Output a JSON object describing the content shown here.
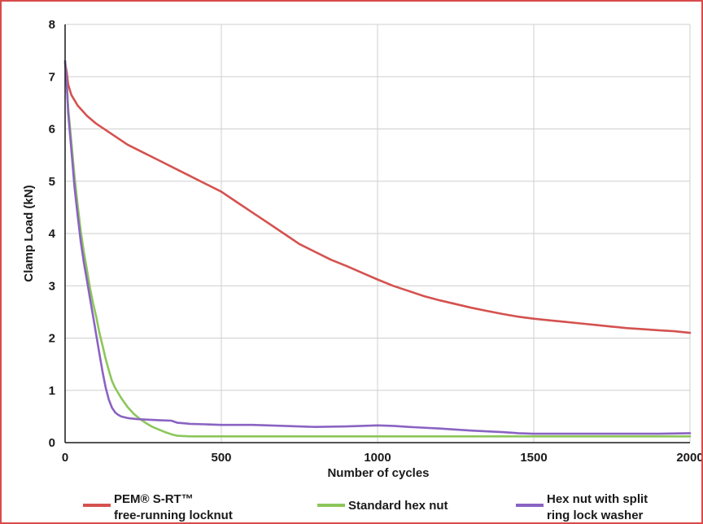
{
  "chart_data": {
    "type": "line",
    "title": "",
    "xlabel": "Number of cycles",
    "ylabel": "Clamp Load (kN)",
    "xlim": [
      0,
      2000
    ],
    "ylim": [
      0,
      8
    ],
    "xticks": [
      0,
      500,
      1000,
      1500,
      2000
    ],
    "xtick_labels": [
      "0",
      "500",
      "1000",
      "1500",
      "2000"
    ],
    "yticks": [
      0,
      1,
      2,
      3,
      4,
      5,
      6,
      7,
      8
    ],
    "ytick_labels": [
      "0",
      "1",
      "2",
      "3",
      "4",
      "5",
      "6",
      "7",
      "8"
    ],
    "grid": true,
    "legend_position": "bottom",
    "series": [
      {
        "name": "PEM® S-RT™ free-running locknut",
        "legend_lines": [
          "PEM® S-RT™",
          "free-running locknut"
        ],
        "color": "#d4524f",
        "x": [
          0,
          5,
          10,
          20,
          40,
          70,
          100,
          150,
          200,
          250,
          300,
          350,
          400,
          450,
          500,
          550,
          600,
          650,
          700,
          750,
          800,
          850,
          900,
          950,
          1000,
          1050,
          1100,
          1150,
          1200,
          1250,
          1300,
          1350,
          1400,
          1450,
          1500,
          1550,
          1600,
          1650,
          1700,
          1750,
          1800,
          1850,
          1900,
          1950,
          2000
        ],
        "values": [
          7.25,
          7.1,
          6.85,
          6.65,
          6.45,
          6.25,
          6.1,
          5.9,
          5.7,
          5.55,
          5.4,
          5.25,
          5.1,
          4.95,
          4.8,
          4.6,
          4.4,
          4.2,
          4.0,
          3.8,
          3.65,
          3.5,
          3.38,
          3.25,
          3.12,
          3.0,
          2.9,
          2.8,
          2.72,
          2.65,
          2.58,
          2.52,
          2.46,
          2.41,
          2.37,
          2.34,
          2.31,
          2.28,
          2.25,
          2.22,
          2.19,
          2.17,
          2.15,
          2.13,
          2.1
        ]
      },
      {
        "name": "Standard hex nut",
        "legend_lines": [
          "Standard hex nut"
        ],
        "color": "#8cc65a",
        "x": [
          0,
          5,
          10,
          20,
          30,
          40,
          50,
          60,
          70,
          80,
          90,
          100,
          110,
          120,
          130,
          140,
          150,
          160,
          170,
          180,
          200,
          220,
          240,
          260,
          280,
          300,
          320,
          340,
          360,
          400,
          500,
          600,
          800,
          1000,
          1200,
          1400,
          1600,
          1800,
          2000
        ],
        "values": [
          7.3,
          6.9,
          6.4,
          5.75,
          5.1,
          4.55,
          4.05,
          3.65,
          3.3,
          2.95,
          2.65,
          2.4,
          2.1,
          1.85,
          1.6,
          1.38,
          1.18,
          1.05,
          0.95,
          0.85,
          0.68,
          0.55,
          0.45,
          0.37,
          0.3,
          0.25,
          0.2,
          0.16,
          0.13,
          0.12,
          0.12,
          0.12,
          0.12,
          0.12,
          0.12,
          0.12,
          0.12,
          0.12,
          0.12
        ]
      },
      {
        "name": "Hex nut with split ring lock washer",
        "legend_lines": [
          "Hex nut with split",
          "ring lock washer"
        ],
        "color": "#8a63c2",
        "x": [
          0,
          5,
          10,
          20,
          30,
          40,
          50,
          60,
          70,
          80,
          90,
          100,
          110,
          120,
          130,
          140,
          150,
          160,
          170,
          180,
          200,
          230,
          260,
          300,
          340,
          360,
          380,
          400,
          450,
          500,
          600,
          700,
          800,
          900,
          1000,
          1050,
          1100,
          1200,
          1300,
          1400,
          1450,
          1500,
          1600,
          1700,
          1800,
          1900,
          2000
        ],
        "values": [
          7.3,
          6.9,
          6.3,
          5.6,
          4.9,
          4.35,
          3.85,
          3.45,
          3.1,
          2.75,
          2.4,
          2.05,
          1.7,
          1.35,
          1.05,
          0.82,
          0.67,
          0.58,
          0.53,
          0.5,
          0.47,
          0.45,
          0.44,
          0.43,
          0.42,
          0.38,
          0.37,
          0.36,
          0.35,
          0.34,
          0.34,
          0.32,
          0.3,
          0.31,
          0.33,
          0.32,
          0.3,
          0.27,
          0.23,
          0.2,
          0.18,
          0.17,
          0.17,
          0.17,
          0.17,
          0.17,
          0.18
        ]
      }
    ]
  }
}
